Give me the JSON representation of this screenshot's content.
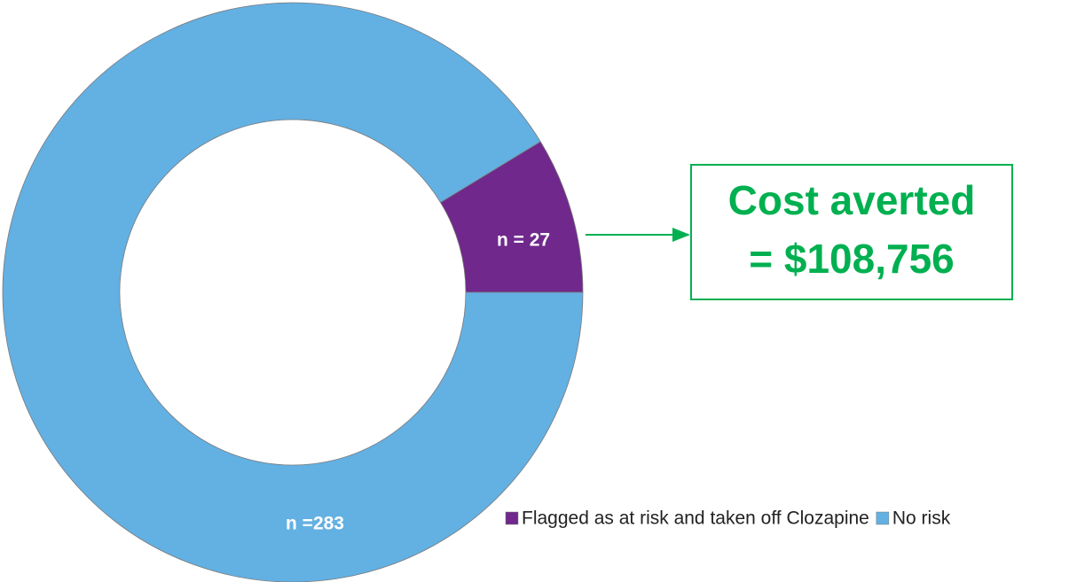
{
  "chart_data": {
    "type": "donut",
    "categories": [
      "Flagged as at risk and taken off Clozapine",
      "No risk"
    ],
    "values": [
      27,
      283
    ],
    "value_labels": [
      "n = 27",
      "n =283"
    ],
    "colors": [
      "#70288c",
      "#63b0e3"
    ],
    "annotation": [
      "Cost averted",
      "= $108,756"
    ],
    "legend": "bottom-right"
  }
}
